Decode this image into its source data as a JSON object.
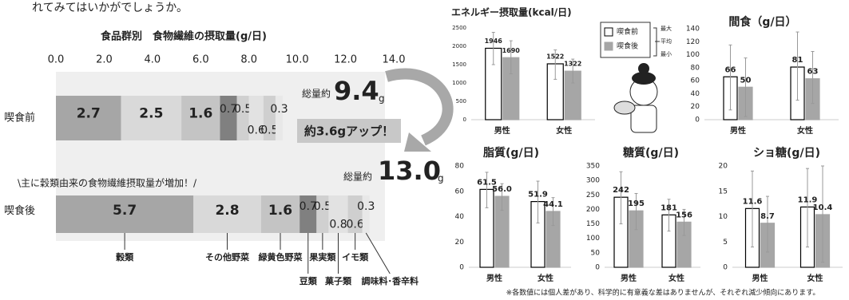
{
  "intro_text": "れてみてはいかがでしょうか。",
  "chart_data": [
    {
      "type": "bar",
      "orientation": "horizontal",
      "stacked": true,
      "title": "食品群別　食物繊維の摂取量(g/日)",
      "categories": [
        "喫食前",
        "喫食後"
      ],
      "xlim": [
        0,
        14
      ],
      "xticks": [
        {
          "value": 0,
          "label": "0.0"
        },
        {
          "value": 2,
          "label": "2.0"
        },
        {
          "value": 4,
          "label": "4.0"
        },
        {
          "value": 6,
          "label": "6.0"
        },
        {
          "value": 8,
          "label": "8.0"
        },
        {
          "value": 10,
          "label": "10.0"
        },
        {
          "value": 12,
          "label": "12.0"
        },
        {
          "value": 14,
          "label": "14.0"
        }
      ],
      "series": [
        {
          "name": "穀類",
          "color": "#a6a6a6",
          "values": [
            2.7,
            5.7
          ]
        },
        {
          "name": "その他野菜",
          "color": "#d9d9d9",
          "values": [
            2.5,
            2.8
          ]
        },
        {
          "name": "緑黄色野菜",
          "color": "#c4c4c4",
          "values": [
            1.6,
            1.6
          ]
        },
        {
          "name": "豆類",
          "color": "#808080",
          "values": [
            0.7,
            0.7
          ]
        },
        {
          "name": "果実類",
          "color": "#d0d0d0",
          "values": [
            0.5,
            0.5
          ]
        },
        {
          "name": "菓子類",
          "color": "#e2e2e2",
          "values": [
            0.6,
            0.8
          ]
        },
        {
          "name": "イモ類",
          "color": "#cfcfcf",
          "values": [
            0.5,
            0.6
          ]
        },
        {
          "name": "調味料･香辛料",
          "color": "#e8e8e8",
          "values": [
            0.3,
            0.3
          ]
        }
      ],
      "annotations": {
        "total_prefix": "総量約",
        "total_before": "9.4",
        "total_after": "13.0",
        "unit": "g",
        "increase": "約3.6gアップ！",
        "note": "\\主に穀類由来の食物繊維摂取量が増加！/"
      }
    },
    {
      "type": "bar",
      "title": "エネルギー摂取量(kcal/日)",
      "categories": [
        "男性",
        "女性"
      ],
      "ylim": [
        0,
        2500
      ],
      "yticks": [
        0,
        500,
        1000,
        1500,
        2000,
        2500
      ],
      "legend": true,
      "range_legend": [
        "最大",
        "平均",
        "最小"
      ],
      "series": [
        {
          "name": "喫食前",
          "color": "#ffffff",
          "edgecolor": "#000000",
          "values": [
            1946,
            1522
          ],
          "max": [
            2380,
            1900
          ],
          "min": [
            1500,
            1100
          ]
        },
        {
          "name": "喫食後",
          "color": "#a6a6a6",
          "edgecolor": "#a6a6a6",
          "values": [
            1690,
            1322
          ],
          "max": [
            2150,
            1650
          ],
          "min": [
            1250,
            1000
          ]
        }
      ]
    },
    {
      "type": "bar",
      "title": "間食（g/日）",
      "categories": [
        "男性",
        "女性"
      ],
      "ylim": [
        0,
        140
      ],
      "yticks": [
        0,
        20,
        40,
        60,
        80,
        100,
        120,
        140
      ],
      "series": [
        {
          "color": "#ffffff",
          "edgecolor": "#000000",
          "values": [
            66,
            81
          ],
          "max": [
            115,
            135
          ],
          "min": [
            15,
            30
          ]
        },
        {
          "color": "#a6a6a6",
          "edgecolor": "#a6a6a6",
          "values": [
            50,
            63
          ],
          "max": [
            95,
            105
          ],
          "min": [
            5,
            25
          ]
        }
      ]
    },
    {
      "type": "bar",
      "title": "脂質(g/日)",
      "categories": [
        "男性",
        "女性"
      ],
      "ylim": [
        0,
        80
      ],
      "yticks": [
        0,
        20,
        40,
        60,
        80
      ],
      "series": [
        {
          "color": "#ffffff",
          "edgecolor": "#000000",
          "values": [
            61.5,
            51.9
          ],
          "max": [
            75,
            68
          ],
          "min": [
            47,
            35
          ]
        },
        {
          "color": "#a6a6a6",
          "edgecolor": "#a6a6a6",
          "values": [
            56,
            44.1
          ],
          "value_labels": [
            "56.0",
            "44.1"
          ],
          "max": [
            66,
            55
          ],
          "min": [
            45,
            33
          ]
        }
      ]
    },
    {
      "type": "bar",
      "title": "糖質(g/日)",
      "categories": [
        "男性",
        "女性"
      ],
      "ylim": [
        0,
        350
      ],
      "yticks": [
        0,
        50,
        100,
        150,
        200,
        250,
        300,
        350
      ],
      "series": [
        {
          "color": "#ffffff",
          "edgecolor": "#000000",
          "values": [
            242,
            181
          ],
          "max": [
            330,
            235
          ],
          "min": [
            150,
            125
          ]
        },
        {
          "color": "#a6a6a6",
          "edgecolor": "#a6a6a6",
          "values": [
            195,
            156
          ],
          "max": [
            255,
            200
          ],
          "min": [
            130,
            110
          ]
        }
      ]
    },
    {
      "type": "bar",
      "title": "ショ糖(g/日)",
      "categories": [
        "男性",
        "女性"
      ],
      "ylim": [
        0,
        20
      ],
      "yticks": [
        0,
        5,
        10,
        15,
        20
      ],
      "series": [
        {
          "color": "#ffffff",
          "edgecolor": "#000000",
          "values": [
            11.6,
            11.9
          ],
          "max": [
            19,
            19.5
          ],
          "min": [
            4,
            4
          ]
        },
        {
          "color": "#a6a6a6",
          "edgecolor": "#a6a6a6",
          "values": [
            8.7,
            10.4
          ],
          "max": [
            14,
            20
          ],
          "min": [
            3,
            1
          ]
        }
      ]
    }
  ],
  "footnote": "※各数値には個人差があり、科学的に有意義な差はありませんが、それぞれ減少傾向にあります。"
}
